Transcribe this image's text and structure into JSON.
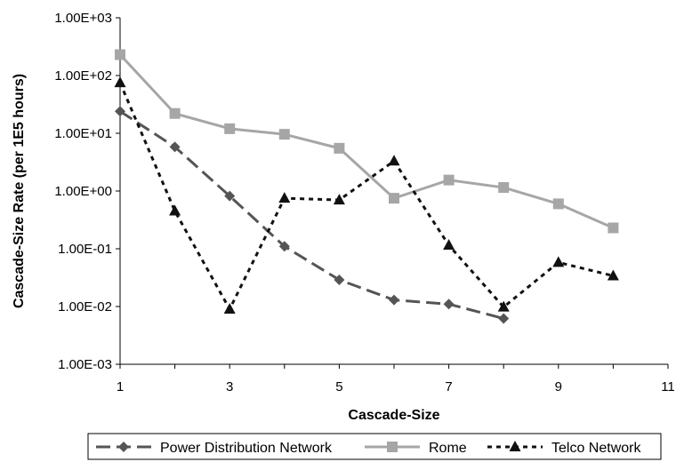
{
  "chart_data": {
    "type": "line",
    "xlabel": "Cascade-Size",
    "ylabel": "Cascade-Size Rate (per 1E5 hours)",
    "y_scale": "log",
    "xlim": [
      1,
      11
    ],
    "ylim": [
      0.001,
      1000
    ],
    "x_ticks": [
      "1",
      "3",
      "5",
      "7",
      "9",
      "11"
    ],
    "y_ticks": [
      "1.00E-03",
      "1.00E-02",
      "1.00E-01",
      "1.00E+00",
      "1.00E+01",
      "1.00E+02",
      "1.00E+03"
    ],
    "grid": false,
    "legend_position": "bottom",
    "series": [
      {
        "name": "Power Distribution Network",
        "color": "#555555",
        "line_style": "long-dash",
        "marker": "diamond",
        "x": [
          1,
          2,
          3,
          4,
          5,
          6,
          7,
          8
        ],
        "y": [
          24,
          5.8,
          0.82,
          0.11,
          0.029,
          0.013,
          0.011,
          0.0062
        ]
      },
      {
        "name": "Rome",
        "color": "#a6a6a6",
        "line_style": "solid",
        "marker": "square",
        "x": [
          1,
          2,
          3,
          4,
          5,
          6,
          7,
          8,
          9,
          10
        ],
        "y": [
          230,
          22,
          12,
          9.6,
          5.5,
          0.75,
          1.55,
          1.15,
          0.6,
          0.23
        ]
      },
      {
        "name": "Telco Network",
        "color": "#111111",
        "line_style": "short-dash",
        "marker": "triangle",
        "x": [
          1,
          2,
          3,
          4,
          5,
          6,
          7,
          8,
          9,
          10
        ],
        "y": [
          75,
          0.45,
          0.009,
          0.75,
          0.7,
          3.3,
          0.115,
          0.0098,
          0.058,
          0.034
        ]
      }
    ]
  }
}
